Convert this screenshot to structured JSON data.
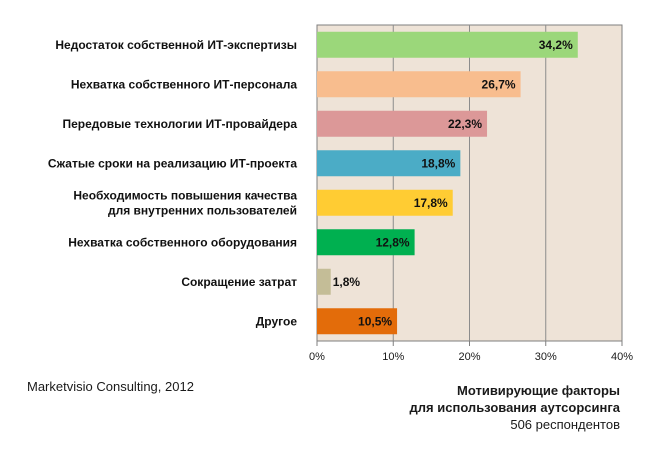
{
  "chart_data": {
    "type": "bar",
    "orientation": "horizontal",
    "categories": [
      [
        "Недостаток собственной ИТ-экспертизы"
      ],
      [
        "Нехватка собственного ИТ-персонала"
      ],
      [
        "Передовые технологии ИТ-провайдера"
      ],
      [
        "Сжатые сроки на реализацию ИТ-проекта"
      ],
      [
        "Необходимость повышения качества",
        "для внутренних пользователей"
      ],
      [
        "Нехватка собственного оборудования"
      ],
      [
        "Сокращение затрат"
      ],
      [
        "Другое"
      ]
    ],
    "values": [
      34.2,
      26.7,
      22.3,
      18.8,
      17.8,
      12.8,
      1.8,
      10.5
    ],
    "value_labels": [
      "34,2%",
      "26,7%",
      "22,3%",
      "18,8%",
      "17,8%",
      "12,8%",
      "1,8%",
      "10,5%"
    ],
    "colors": [
      "#9bd77a",
      "#f8bd8e",
      "#dc9898",
      "#4bacc6",
      "#ffcc33",
      "#00b050",
      "#c4bd97",
      "#e36c0a"
    ],
    "xlim": [
      0,
      40
    ],
    "xticks": [
      0,
      10,
      20,
      30,
      40
    ],
    "xtick_labels": [
      "0%",
      "10%",
      "20%",
      "30%",
      "40%"
    ],
    "plot_background": "#eee3d7",
    "grid": true
  },
  "source": "Marketvisio Consulting, 2012",
  "caption": {
    "title_line1": "Мотивирующие факторы",
    "title_line2": "для использования аутсорсинга",
    "respondents": "506 респондентов"
  }
}
